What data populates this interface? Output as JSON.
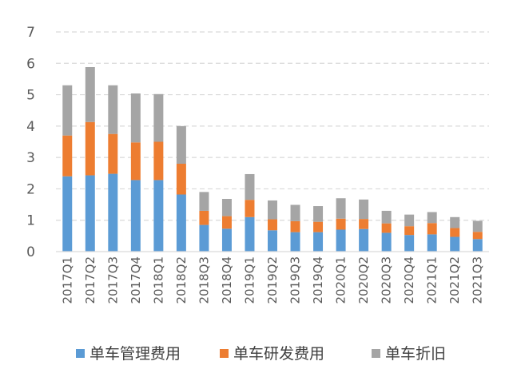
{
  "chart_data": {
    "type": "bar",
    "stacked": true,
    "title": "",
    "xlabel": "",
    "ylabel": "",
    "ylim": [
      0,
      7
    ],
    "yticks": [
      0,
      1,
      2,
      3,
      4,
      5,
      6,
      7
    ],
    "grid": true,
    "legend_position": "bottom",
    "categories": [
      "2017Q1",
      "2017Q2",
      "2017Q3",
      "2017Q4",
      "2018Q1",
      "2018Q2",
      "2018Q3",
      "2018Q4",
      "2019Q1",
      "2019Q2",
      "2019Q3",
      "2019Q4",
      "2020Q1",
      "2020Q2",
      "2020Q3",
      "2020Q4",
      "2021Q1",
      "2021Q2",
      "2021Q3"
    ],
    "series": [
      {
        "name": "单车管理费用",
        "color": "#5B9BD5",
        "values": [
          2.4,
          2.43,
          2.48,
          2.28,
          2.28,
          1.82,
          0.85,
          0.73,
          1.1,
          0.68,
          0.62,
          0.62,
          0.7,
          0.72,
          0.6,
          0.53,
          0.55,
          0.47,
          0.4
        ]
      },
      {
        "name": "单车研发费用",
        "color": "#ED7D31",
        "values": [
          1.3,
          1.7,
          1.27,
          1.2,
          1.22,
          0.98,
          0.45,
          0.4,
          0.55,
          0.35,
          0.35,
          0.33,
          0.35,
          0.32,
          0.3,
          0.28,
          0.36,
          0.28,
          0.23
        ]
      },
      {
        "name": "单车折旧",
        "color": "#A5A5A5",
        "values": [
          1.6,
          1.75,
          1.55,
          1.56,
          1.52,
          1.2,
          0.6,
          0.55,
          0.82,
          0.6,
          0.52,
          0.5,
          0.65,
          0.62,
          0.4,
          0.37,
          0.35,
          0.35,
          0.35
        ]
      }
    ]
  }
}
